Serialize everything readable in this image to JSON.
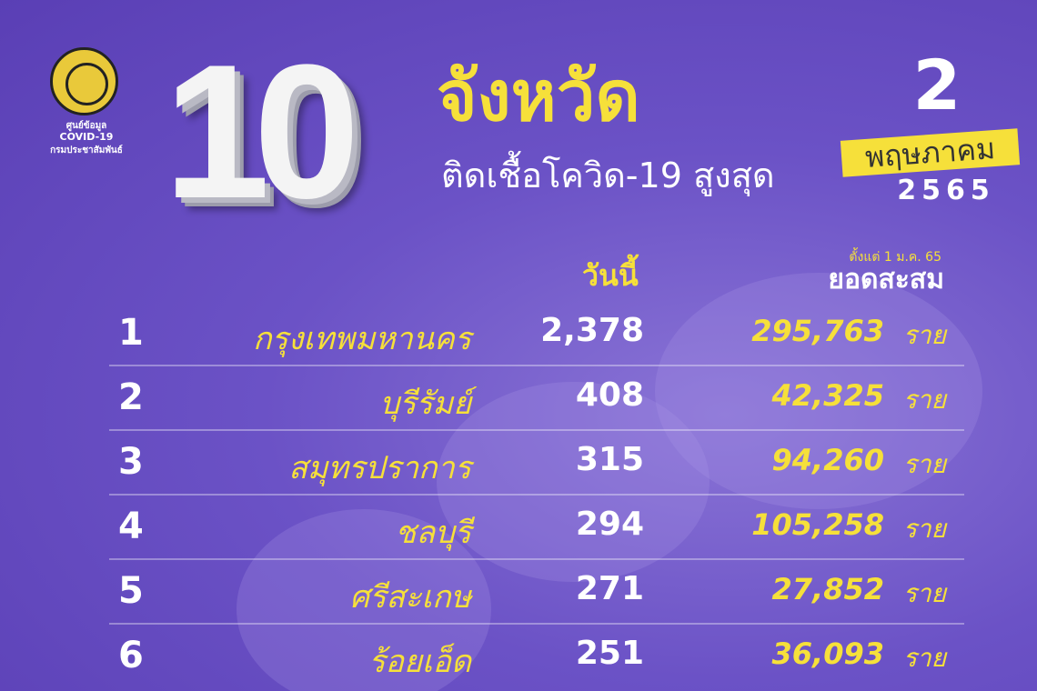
{
  "logo": {
    "line1": "ศูนย์ข้อมูล",
    "line2": "COVID-19",
    "line3": "กรมประชาสัมพันธ์"
  },
  "title": {
    "number": "10",
    "main": "จังหวัด",
    "sub": "ติดเชื้อโควิด-19 สูงสุด"
  },
  "date": {
    "day": "2",
    "month": "พฤษภาคม",
    "year": "2565"
  },
  "headers": {
    "today": "วันนี้",
    "since": "ตั้งแต่ 1 ม.ค. 65",
    "total": "ยอดสะสม"
  },
  "colors": {
    "background": "#6b52c6",
    "accent": "#f6e03a"
  },
  "rows": [
    {
      "rank": "1",
      "province": "กรุงเทพมหานคร",
      "today": "2,378",
      "total": "295,763",
      "unit": "ราย"
    },
    {
      "rank": "2",
      "province": "บุรีรัมย์",
      "today": "408",
      "total": "42,325",
      "unit": "ราย"
    },
    {
      "rank": "3",
      "province": "สมุทรปราการ",
      "today": "315",
      "total": "94,260",
      "unit": "ราย"
    },
    {
      "rank": "4",
      "province": "ชลบุรี",
      "today": "294",
      "total": "105,258",
      "unit": "ราย"
    },
    {
      "rank": "5",
      "province": "ศรีสะเกษ",
      "today": "271",
      "total": "27,852",
      "unit": "ราย"
    },
    {
      "rank": "6",
      "province": "ร้อยเอ็ด",
      "today": "251",
      "total": "36,093",
      "unit": "ราย"
    }
  ]
}
